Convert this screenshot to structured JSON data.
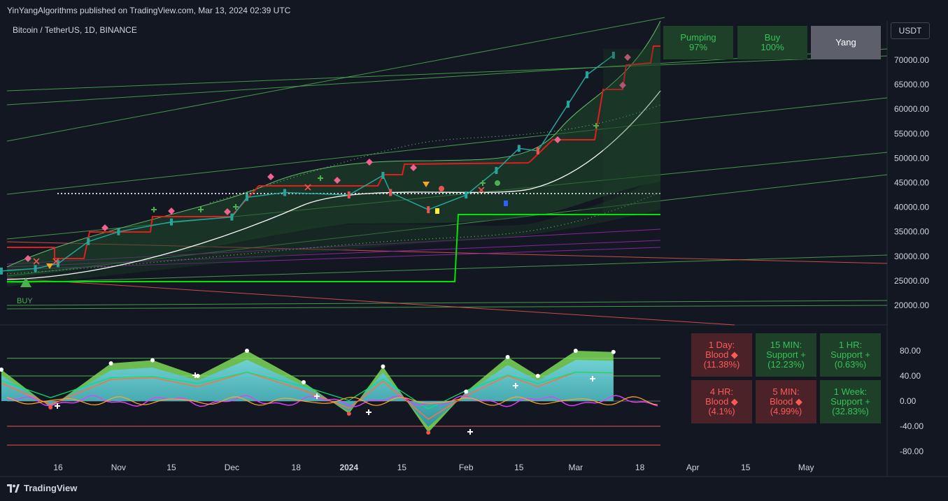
{
  "header": {
    "publisher": "YinYangAlgorithms published on TradingView.com, Mar 13, 2024 02:39 UTC",
    "symbol": "Bitcoin / TetherUS, 1D, BINANCE",
    "currency": "USDT",
    "logo_text": "TradingView"
  },
  "signal_label": "BUY",
  "status_boxes": [
    {
      "line1": "Pumping",
      "line2": "97%",
      "tone": "green"
    },
    {
      "line1": "Buy",
      "line2": "100%",
      "tone": "green"
    },
    {
      "line1": "Yang",
      "line2": "",
      "tone": "grey"
    }
  ],
  "timeframe_boxes": [
    {
      "line1": "1 Day:",
      "line2": "Blood ◆",
      "line3": "(11.38%)",
      "tone": "red"
    },
    {
      "line1": "15 MIN:",
      "line2": "Support +",
      "line3": "(12.23%)",
      "tone": "green"
    },
    {
      "line1": "1 HR:",
      "line2": "Support +",
      "line3": "(0.63%)",
      "tone": "green"
    },
    {
      "line1": "4 HR:",
      "line2": "Blood ◆",
      "line3": "(4.1%)",
      "tone": "red"
    },
    {
      "line1": "5 MIN:",
      "line2": "Blood ◆",
      "line3": "(4.99%)",
      "tone": "red"
    },
    {
      "line1": "1 Week:",
      "line2": "Support +",
      "line3": "(32.83%)",
      "tone": "green"
    }
  ],
  "colors": {
    "background": "#131722",
    "up": "#26a69a",
    "down": "#ef5350",
    "green_line": "#4caf50",
    "red_line": "#ef5350",
    "purple_line": "#9c27b0",
    "bright_green": "#00e600",
    "oscillator_fill": "#4fb3c8"
  },
  "chart_data": [
    {
      "type": "line",
      "pane": "price",
      "title": "Bitcoin / TetherUS, 1D, BINANCE",
      "x_ticks": [
        "16",
        "Nov",
        "15",
        "Dec",
        "18",
        "2024",
        "15",
        "Feb",
        "15",
        "Mar",
        "18",
        "Apr",
        "15",
        "May"
      ],
      "y_ticks": [
        "70000.00",
        "65000.00",
        "60000.00",
        "55000.00",
        "50000.00",
        "45000.00",
        "40000.00",
        "35000.00",
        "30000.00",
        "25000.00",
        "20000.00"
      ],
      "ylim": [
        15000,
        77000
      ],
      "x": [
        "2023-10-01",
        "2023-10-10",
        "2023-10-16",
        "2023-10-24",
        "2023-11-01",
        "2023-11-15",
        "2023-12-01",
        "2023-12-05",
        "2023-12-15",
        "2024-01-01",
        "2024-01-10",
        "2024-01-12",
        "2024-01-22",
        "2024-02-01",
        "2024-02-09",
        "2024-02-15",
        "2024-02-20",
        "2024-02-28",
        "2024-03-04",
        "2024-03-11"
      ],
      "series": [
        {
          "values": [
            27000,
            27500,
            28500,
            33000,
            35000,
            37000,
            38000,
            42000,
            43000,
            42500,
            46500,
            43000,
            39500,
            42500,
            47500,
            52000,
            51500,
            61000,
            67000,
            71000
          ]
        }
      ]
    },
    {
      "type": "line",
      "pane": "oscillator",
      "y_ticks": [
        "80.00",
        "40.00",
        "0.00",
        "-40.00",
        "-80.00"
      ],
      "ylim": [
        -85,
        90
      ],
      "x": [
        "2023-10-01",
        "2023-10-14",
        "2023-10-30",
        "2023-11-10",
        "2023-11-22",
        "2023-12-05",
        "2023-12-20",
        "2024-01-01",
        "2024-01-10",
        "2024-01-22",
        "2024-02-01",
        "2024-02-12",
        "2024-02-20",
        "2024-03-01",
        "2024-03-11"
      ],
      "series": [
        {
          "values": [
            50,
            -10,
            60,
            65,
            40,
            80,
            30,
            -20,
            55,
            -50,
            15,
            70,
            40,
            80,
            78
          ]
        }
      ]
    }
  ]
}
